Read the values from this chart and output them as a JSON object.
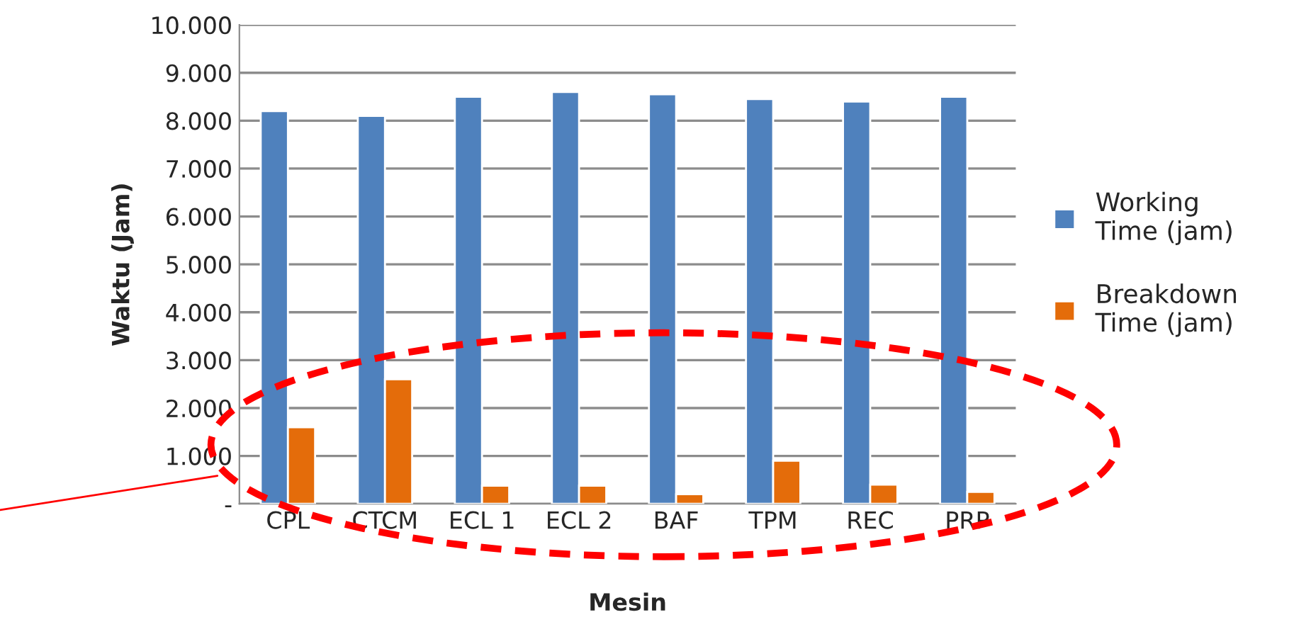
{
  "chart_data": {
    "type": "bar",
    "xlabel": "Mesin",
    "ylabel": "Waktu (Jam)",
    "categories": [
      "CPL",
      "CTCM",
      "ECL 1",
      "ECL 2",
      "BAF",
      "TPM",
      "REC",
      "PRP"
    ],
    "series": [
      {
        "name": "Working Time (jam)",
        "color": "#4f81bd",
        "values": [
          8200,
          8100,
          8500,
          8600,
          8550,
          8450,
          8400,
          8500
        ]
      },
      {
        "name": "Breakdown Time (jam)",
        "color": "#e46c0a",
        "values": [
          1600,
          2600,
          380,
          380,
          200,
          900,
          400,
          250
        ]
      }
    ],
    "ylim": [
      0,
      10000
    ],
    "yticks": [
      {
        "value": 0,
        "label": "-"
      },
      {
        "value": 1000,
        "label": "1.000"
      },
      {
        "value": 2000,
        "label": "2.000"
      },
      {
        "value": 3000,
        "label": "3.000"
      },
      {
        "value": 4000,
        "label": "4.000"
      },
      {
        "value": 5000,
        "label": "5.000"
      },
      {
        "value": 6000,
        "label": "6.000"
      },
      {
        "value": 7000,
        "label": "7.000"
      },
      {
        "value": 8000,
        "label": "8.000"
      },
      {
        "value": 9000,
        "label": "9.000"
      },
      {
        "value": 10000,
        "label": "10.000"
      }
    ],
    "grid": "y",
    "legend": "right"
  }
}
